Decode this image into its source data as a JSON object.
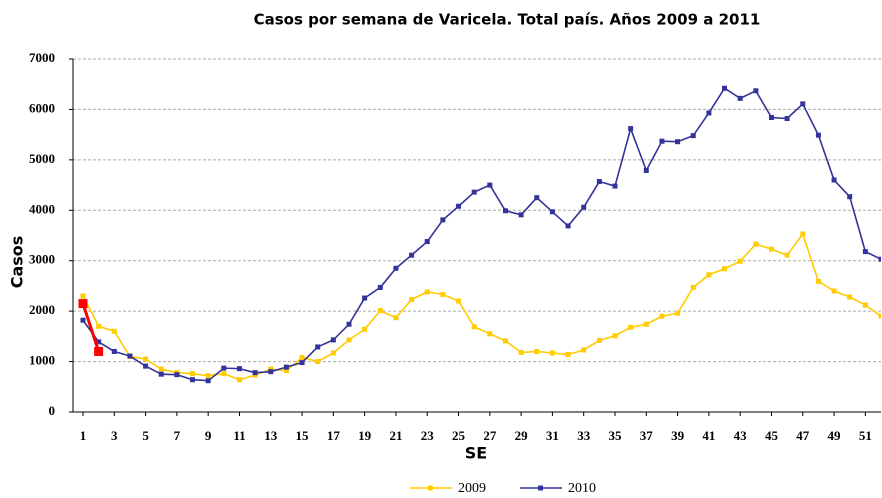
{
  "chart_data": {
    "type": "line",
    "title": "Casos por semana de Varicela. Total país. Años 2009 a 2011",
    "x_label": "SE",
    "y_label": "Casos",
    "x": [
      1,
      2,
      3,
      4,
      5,
      6,
      7,
      8,
      9,
      10,
      11,
      12,
      13,
      14,
      15,
      16,
      17,
      18,
      19,
      20,
      21,
      22,
      23,
      24,
      25,
      26,
      27,
      28,
      29,
      30,
      31,
      32,
      33,
      34,
      35,
      36,
      37,
      38,
      39,
      40,
      41,
      42,
      43,
      44,
      45,
      46,
      47,
      48,
      49,
      50,
      51,
      52
    ],
    "xlim": [
      1,
      52
    ],
    "xticks": [
      1,
      3,
      5,
      7,
      9,
      11,
      13,
      15,
      17,
      19,
      21,
      23,
      25,
      27,
      29,
      31,
      33,
      35,
      37,
      39,
      41,
      43,
      45,
      47,
      49,
      51
    ],
    "ylim": [
      0,
      7000
    ],
    "yticks": [
      0,
      1000,
      2000,
      3000,
      4000,
      5000,
      6000,
      7000
    ],
    "grid": true,
    "series": [
      {
        "name": "2009",
        "color": "#ffcc00",
        "values": [
          2300,
          1700,
          1600,
          1100,
          1050,
          850,
          780,
          760,
          720,
          760,
          640,
          730,
          850,
          820,
          1080,
          1000,
          1170,
          1430,
          1640,
          2010,
          1870,
          2230,
          2380,
          2330,
          2200,
          1690,
          1550,
          1410,
          1180,
          1200,
          1170,
          1140,
          1230,
          1420,
          1510,
          1680,
          1740,
          1900,
          1960,
          2470,
          2720,
          2840,
          2990,
          3330,
          3230,
          3110,
          3530,
          2590,
          2400,
          2280,
          2120,
          1900
        ]
      },
      {
        "name": "2010",
        "color": "#333399",
        "values": [
          1820,
          1390,
          1200,
          1110,
          910,
          750,
          740,
          640,
          620,
          870,
          860,
          780,
          800,
          890,
          980,
          1290,
          1430,
          1740,
          2260,
          2470,
          2850,
          3110,
          3380,
          3810,
          4080,
          4360,
          4500,
          3990,
          3910,
          4250,
          3970,
          3690,
          4060,
          4570,
          4480,
          5620,
          4790,
          5370,
          5360,
          5480,
          5930,
          6420,
          6220,
          6370,
          5840,
          5820,
          6110,
          5490,
          4600,
          4270,
          3180,
          3030
        ]
      },
      {
        "color": "#ff0000",
        "values": [
          2150,
          1200,
          null,
          null,
          null,
          null,
          null,
          null,
          null,
          null,
          null,
          null,
          null,
          null,
          null,
          null,
          null,
          null,
          null,
          null,
          null,
          null,
          null,
          null,
          null,
          null,
          null,
          null,
          null,
          null,
          null,
          null,
          null,
          null,
          null,
          null,
          null,
          null,
          null,
          null,
          null,
          null,
          null,
          null,
          null,
          null,
          null,
          null,
          null,
          null,
          null,
          null
        ]
      }
    ]
  }
}
